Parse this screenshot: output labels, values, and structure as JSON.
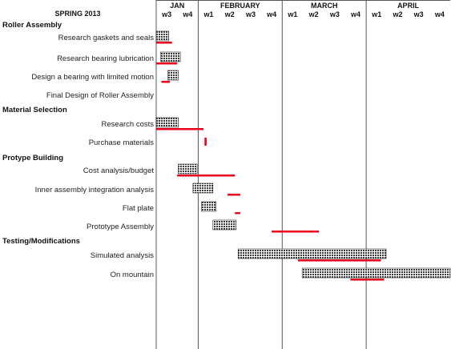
{
  "chart_data": {
    "type": "gantt",
    "title": "SPRING 2013",
    "months": [
      {
        "name": "JAN",
        "weeks": [
          "w3",
          "w4"
        ]
      },
      {
        "name": "FEBRUARY",
        "weeks": [
          "w1",
          "w2",
          "w3",
          "w4"
        ]
      },
      {
        "name": "MARCH",
        "weeks": [
          "w1",
          "w2",
          "w3",
          "w4"
        ]
      },
      {
        "name": "APRIL",
        "weeks": [
          "w1",
          "w2",
          "w3",
          "w4"
        ]
      }
    ],
    "x_unit": "weeks from start of JAN w3",
    "xlim": [
      0,
      14
    ],
    "colors": {
      "planned": "#555555",
      "actual": "#e8001c",
      "grid": "#555555"
    },
    "rows": [
      {
        "kind": "group",
        "label": "Roller Assembly"
      },
      {
        "kind": "task",
        "label": "Research gaskets and seals",
        "planned": [
          0.0,
          0.6
        ],
        "actual": [
          0.0,
          0.75
        ]
      },
      {
        "kind": "task",
        "label": "Research bearing lubrication",
        "planned": [
          0.2,
          1.15
        ],
        "actual": [
          0.0,
          1.0
        ]
      },
      {
        "kind": "task",
        "label": "Design a bearing with limited motion",
        "planned": [
          0.55,
          1.05
        ],
        "actual": [
          0.25,
          0.65
        ]
      },
      {
        "kind": "task",
        "label": "Final Design of Roller Assembly",
        "planned": null,
        "actual": null
      },
      {
        "kind": "group",
        "label": "Material Selection"
      },
      {
        "kind": "task",
        "label": "Research costs",
        "planned": [
          0.0,
          1.05
        ],
        "actual": [
          0.0,
          2.25
        ]
      },
      {
        "kind": "task",
        "label": "Purchase materials",
        "planned": null,
        "actual": [
          2.3,
          2.4
        ]
      },
      {
        "kind": "group",
        "label": "Protype Building"
      },
      {
        "kind": "task",
        "label": "Cost analysis/budget",
        "planned": [
          1.05,
          1.95
        ],
        "actual": [
          1.0,
          3.75
        ]
      },
      {
        "kind": "task",
        "label": "Inner assembly integration analysis",
        "planned": [
          1.75,
          2.7
        ],
        "actual": [
          3.4,
          4.0
        ]
      },
      {
        "kind": "task",
        "label": "Flat plate",
        "planned": [
          2.15,
          2.85
        ],
        "actual": [
          3.75,
          4.0
        ]
      },
      {
        "kind": "task",
        "label": "Prototype Assembly",
        "planned": [
          2.7,
          3.8
        ],
        "actual": [
          5.5,
          7.75
        ]
      },
      {
        "kind": "group",
        "label": "Testing/Modifications"
      },
      {
        "kind": "task",
        "label": "Simulated analysis",
        "planned": [
          3.9,
          10.95
        ],
        "actual": [
          6.75,
          10.7
        ]
      },
      {
        "kind": "task",
        "label": "On mountain",
        "planned": [
          6.95,
          14.0
        ],
        "actual": [
          9.25,
          10.85
        ]
      }
    ]
  }
}
